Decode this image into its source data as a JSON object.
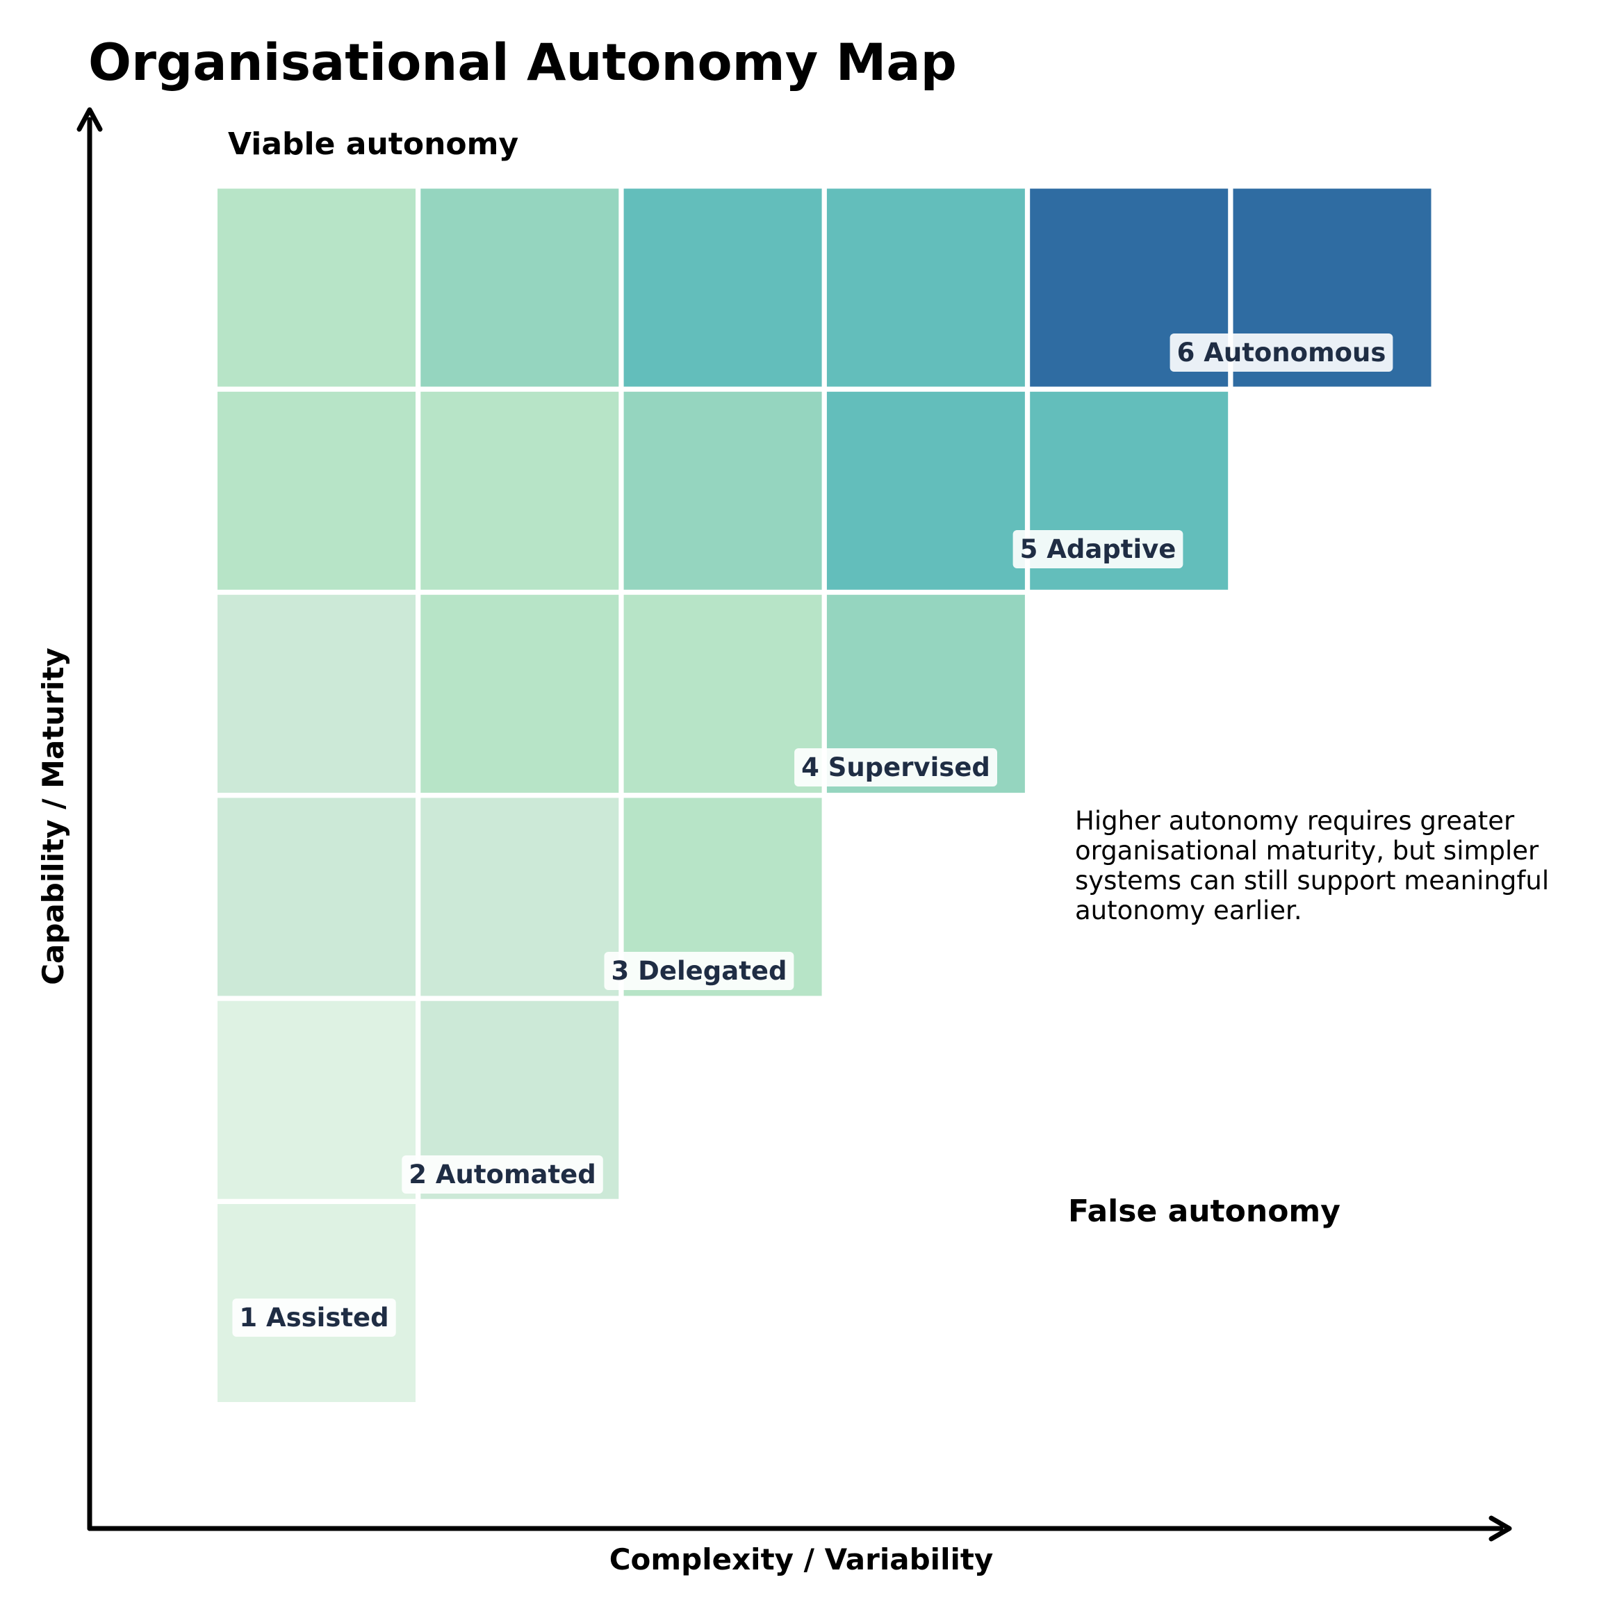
{
  "title": "Organisational Autonomy Map",
  "regions": {
    "viable": "Viable autonomy",
    "false": "False autonomy"
  },
  "axes": {
    "x_label": "Complexity / Variability",
    "y_label": "Capability / Maturity"
  },
  "note": [
    "Higher autonomy requires greater",
    "organisational maturity, but simpler",
    "systems can still support meaningful",
    "autonomy earlier."
  ],
  "levels": [
    {
      "label": "1 Assisted"
    },
    {
      "label": "2 Automated"
    },
    {
      "label": "3 Delegated"
    },
    {
      "label": "4 Supervised"
    },
    {
      "label": "5 Adaptive"
    },
    {
      "label": "6 Autonomous"
    }
  ],
  "palette": [
    "#def2e3",
    "#cce9d7",
    "#b7e4c7",
    "#95d5bf",
    "#63bebb",
    "#2f6ca2"
  ],
  "grid": [
    [
      0
    ],
    [
      0,
      1
    ],
    [
      1,
      1,
      2
    ],
    [
      1,
      2,
      2,
      3
    ],
    [
      2,
      2,
      3,
      4,
      4
    ],
    [
      2,
      3,
      4,
      4,
      5,
      5
    ]
  ]
}
